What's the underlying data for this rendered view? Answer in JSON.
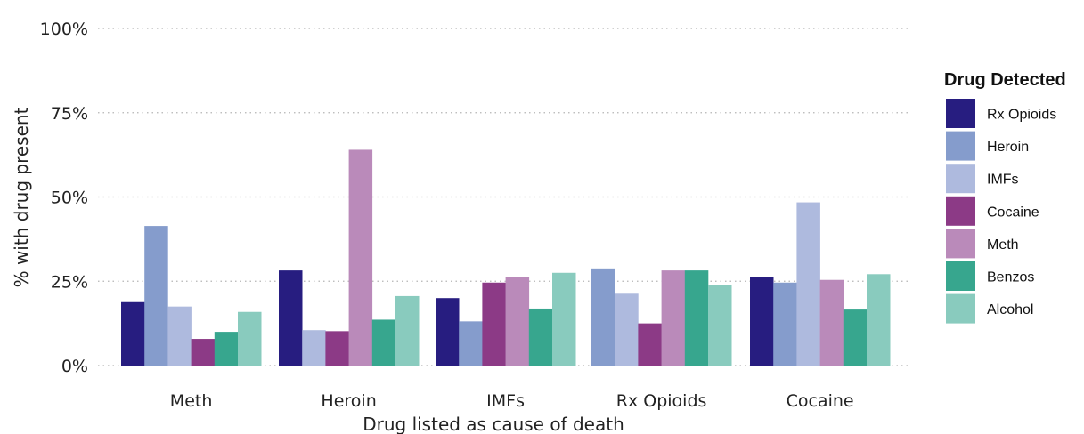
{
  "chart_data": {
    "type": "bar",
    "xlabel": "Drug listed as cause of death",
    "ylabel": "% with drug present",
    "ylim": [
      0,
      100
    ],
    "yticks": [
      0,
      25,
      50,
      75,
      100
    ],
    "ytick_labels": [
      "0%",
      "25%",
      "50%",
      "75%",
      "100%"
    ],
    "grid": "horizontal-dotted",
    "legend": {
      "title": "Drug Detected",
      "placement": "right"
    },
    "categories": [
      "Meth",
      "Heroin",
      "IMFs",
      "Rx Opioids",
      "Cocaine"
    ],
    "series": [
      {
        "name": "Rx Opioids",
        "color": "#271D80",
        "values": [
          18.8,
          28.2,
          20.0,
          null,
          26.2
        ]
      },
      {
        "name": "Heroin",
        "color": "#859CCC",
        "values": [
          41.4,
          null,
          13.1,
          28.8,
          24.6
        ]
      },
      {
        "name": "IMFs",
        "color": "#AEBADE",
        "values": [
          17.5,
          10.5,
          null,
          21.3,
          48.4
        ]
      },
      {
        "name": "Cocaine",
        "color": "#8C3A86",
        "values": [
          7.9,
          10.2,
          24.6,
          12.5,
          null
        ]
      },
      {
        "name": "Meth",
        "color": "#BA8ABA",
        "values": [
          null,
          64.0,
          26.2,
          28.2,
          25.4
        ]
      },
      {
        "name": "Benzos",
        "color": "#37A68E",
        "values": [
          10.0,
          13.6,
          16.9,
          28.2,
          16.6
        ]
      },
      {
        "name": "Alcohol",
        "color": "#89CBBE",
        "values": [
          15.9,
          20.6,
          27.5,
          23.9,
          27.1
        ]
      }
    ]
  }
}
